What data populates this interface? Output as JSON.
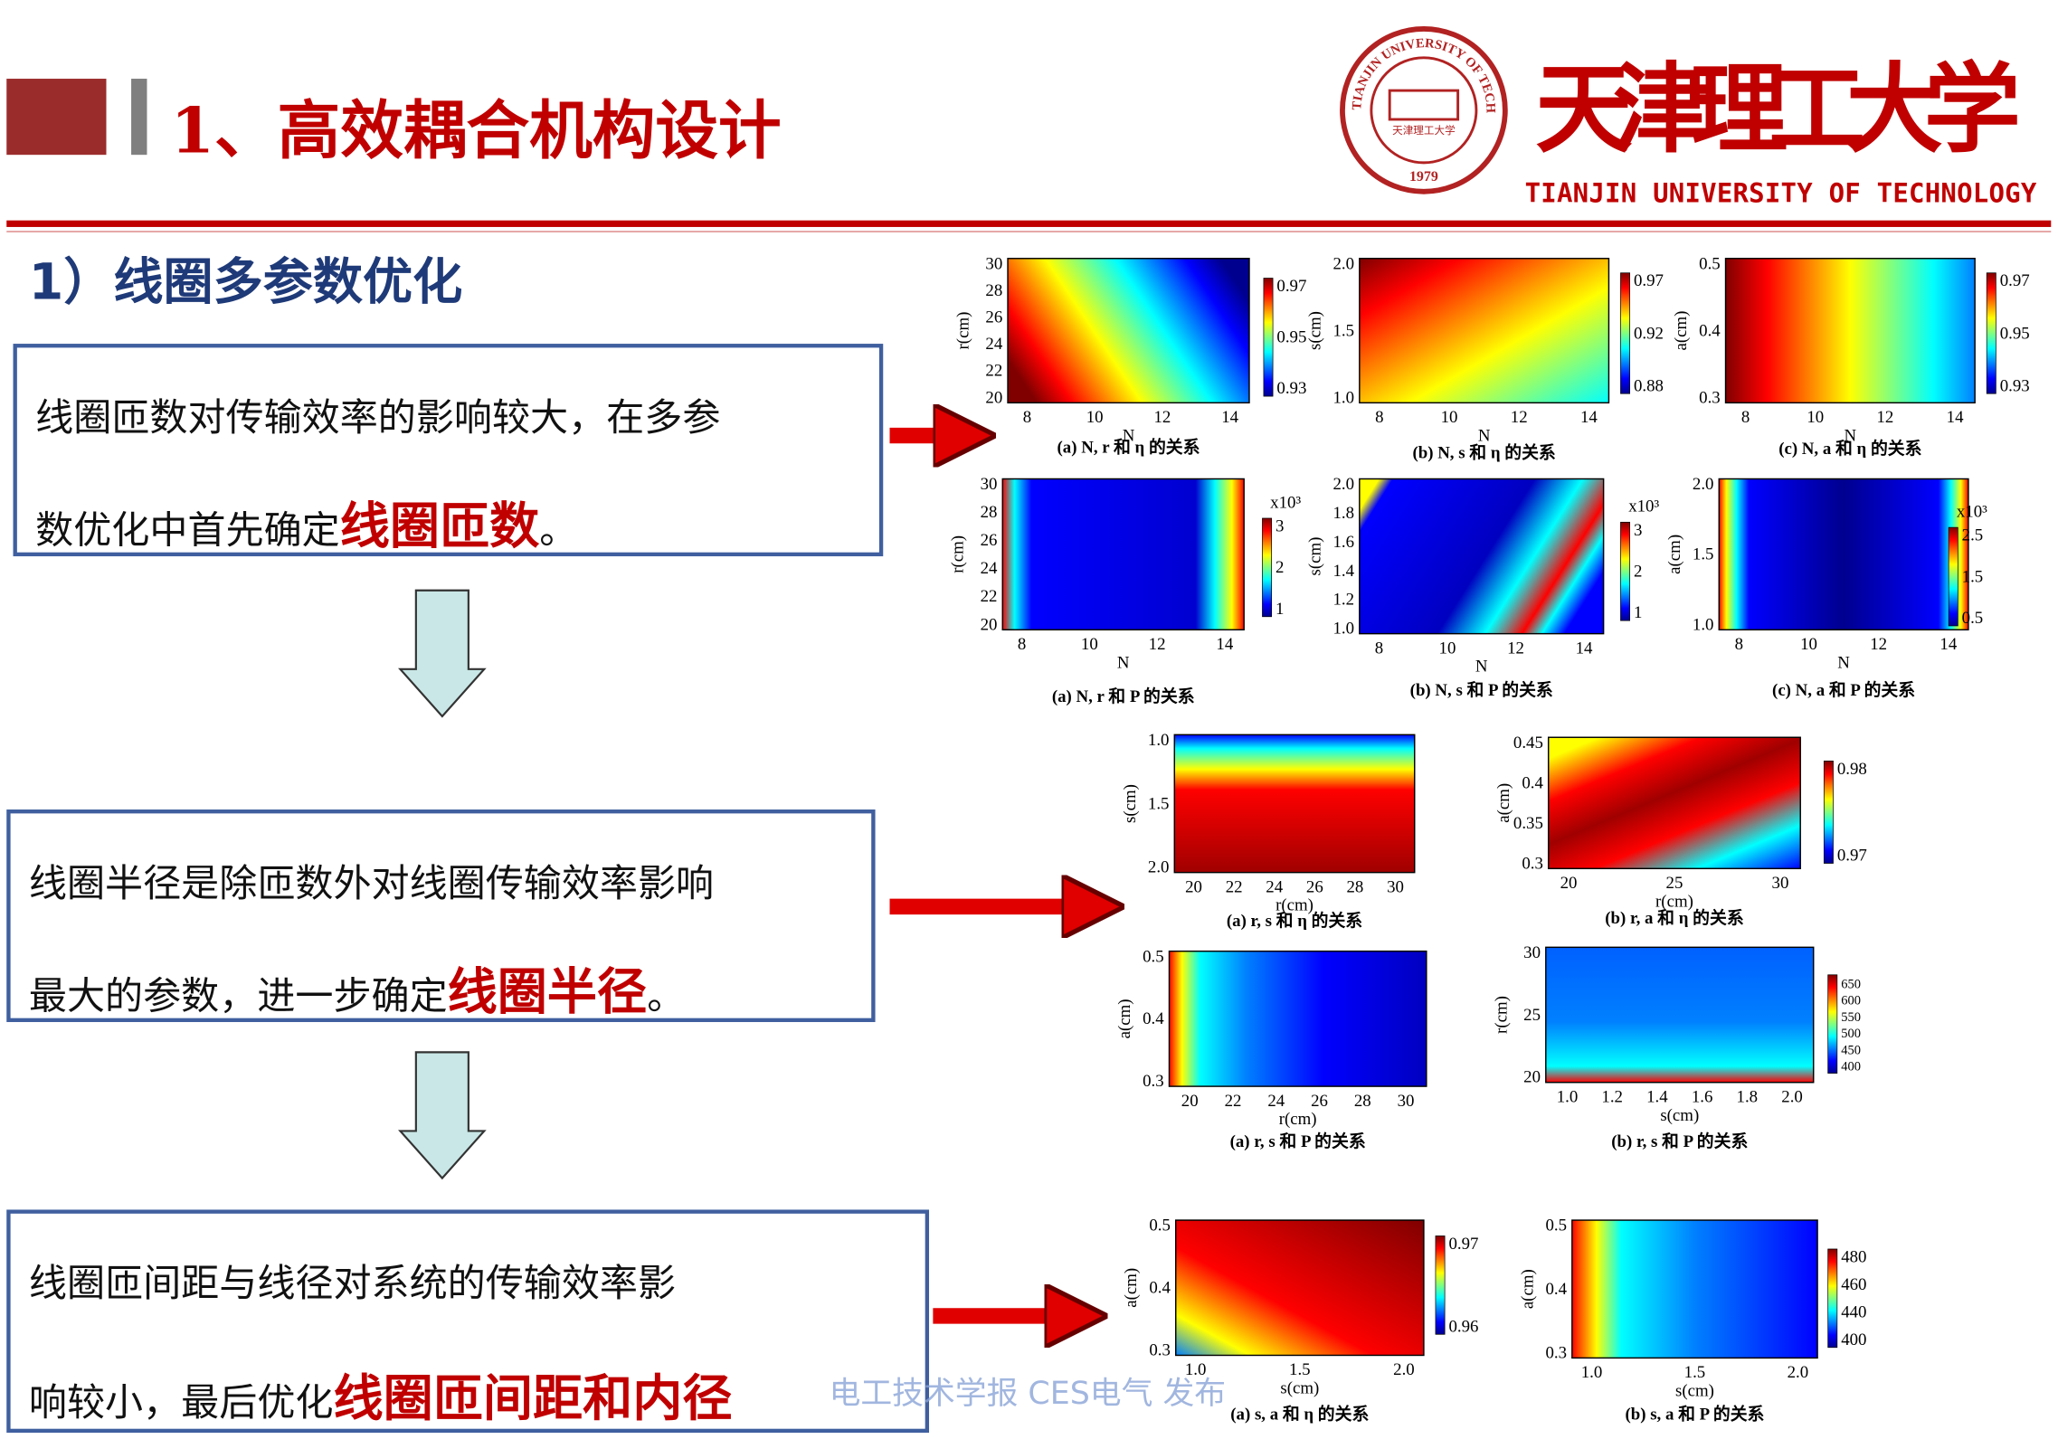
{
  "header": {
    "title": "1、高效耦合机构设计",
    "logo_cn": "天津理工大学",
    "logo_en": "TIANJIN UNIVERSITY OF TECHNOLOGY",
    "seal_text": "TIANJIN UNIVERSITY OF TECHNOLOGY",
    "seal_year": "1979",
    "seal_inner": "天津理工大学"
  },
  "section": "1）线圈多参数优化",
  "boxes": [
    {
      "lines": [
        "线圈匝数对传输效率的影响较大，在多参",
        "数优化中首先确定"
      ],
      "highlight": "线圈匝数",
      "end": "。"
    },
    {
      "lines": [
        "线圈半径是除匝数外对线圈传输效率影响",
        "最大的参数，进一步确定"
      ],
      "highlight": "线圈半径",
      "end": "。"
    },
    {
      "lines": [
        "线圈匝间距与线径对系统的传输效率影",
        "响较小，最后优化"
      ],
      "highlight": "线圈匝间距和内径"
    }
  ],
  "figures": [
    {
      "caption": "(a) N, r 和 η 的关系",
      "xlabel": "N",
      "ylabel": "r(cm)",
      "xticks": [
        "8",
        "10",
        "12",
        "14"
      ],
      "yticks": [
        "30",
        "28",
        "26",
        "24",
        "22",
        "20"
      ],
      "cbar_ticks": [
        "0.97",
        "0.95",
        "0.93"
      ]
    },
    {
      "caption": "(b) N, s 和 η 的关系",
      "xlabel": "N",
      "ylabel": "s(cm)",
      "xticks": [
        "8",
        "10",
        "12",
        "14"
      ],
      "yticks": [
        "2.0",
        "1.5",
        "1.0"
      ],
      "cbar_ticks": [
        "0.97",
        "0.92",
        "0.88"
      ]
    },
    {
      "caption": "(c) N, a 和 η 的关系",
      "xlabel": "N",
      "ylabel": "a(cm)",
      "xticks": [
        "8",
        "10",
        "12",
        "14"
      ],
      "yticks": [
        "0.5",
        "0.4",
        "0.3"
      ],
      "cbar_ticks": [
        "0.97",
        "0.95",
        "0.93"
      ]
    },
    {
      "caption": "(a) N, r 和 P 的关系",
      "xlabel": "N",
      "ylabel": "r(cm)",
      "xticks": [
        "8",
        "10",
        "12",
        "14"
      ],
      "yticks": [
        "30",
        "28",
        "26",
        "24",
        "22",
        "20"
      ],
      "cbar_ticks": [
        "3",
        "2",
        "1"
      ],
      "cbar_exp": "x10³"
    },
    {
      "caption": "(b) N, s 和 P 的关系",
      "xlabel": "N",
      "ylabel": "s(cm)",
      "xticks": [
        "8",
        "10",
        "12",
        "14"
      ],
      "yticks": [
        "2.0",
        "1.8",
        "1.6",
        "1.4",
        "1.2",
        "1.0"
      ],
      "cbar_ticks": [
        "3",
        "2",
        "1"
      ],
      "cbar_exp": "x10³"
    },
    {
      "caption": "(c) N, a 和 P 的关系",
      "xlabel": "N",
      "ylabel": "a(cm)",
      "xticks": [
        "8",
        "10",
        "12",
        "14"
      ],
      "yticks": [
        "2.0",
        "1.5",
        "1.0"
      ],
      "cbar_ticks": [
        "2.5",
        "1.5",
        "0.5"
      ],
      "cbar_exp": "x10³"
    },
    {
      "caption": "(a) r, s 和 η 的关系",
      "xlabel": "r(cm)",
      "ylabel": "s(cm)",
      "xticks": [
        "20",
        "22",
        "24",
        "26",
        "28",
        "30"
      ],
      "yticks": [
        "1.0",
        "1.5",
        "2.0"
      ]
    },
    {
      "caption": "(b) r, a 和 η 的关系",
      "xlabel": "r(cm)",
      "ylabel": "a(cm)",
      "xticks": [
        "20",
        "25",
        "30"
      ],
      "yticks": [
        "0.45",
        "0.4",
        "0.35",
        "0.3"
      ],
      "cbar_ticks": [
        "0.98",
        "0.97"
      ]
    },
    {
      "caption": "(a) r, s 和 P 的关系",
      "xlabel": "r(cm)",
      "ylabel": "a(cm)",
      "xticks": [
        "20",
        "22",
        "24",
        "26",
        "28",
        "30"
      ],
      "yticks": [
        "0.5",
        "0.4",
        "0.3"
      ]
    },
    {
      "caption": "(b) r, s 和 P 的关系",
      "xlabel": "s(cm)",
      "ylabel": "r(cm)",
      "xticks": [
        "1.0",
        "1.2",
        "1.4",
        "1.6",
        "1.8",
        "2.0"
      ],
      "yticks": [
        "30",
        "25",
        "20"
      ],
      "cbar_ticks": [
        "650",
        "600",
        "550",
        "500",
        "450",
        "400"
      ]
    },
    {
      "caption": "(a) s, a 和 η 的关系",
      "xlabel": "s(cm)",
      "ylabel": "a(cm)",
      "xticks": [
        "1.0",
        "1.5",
        "2.0"
      ],
      "yticks": [
        "0.5",
        "0.4",
        "0.3"
      ],
      "cbar_ticks": [
        "0.97",
        "0.96"
      ]
    },
    {
      "caption": "(b) s, a 和 P 的关系",
      "xlabel": "s(cm)",
      "ylabel": "a(cm)",
      "xticks": [
        "1.0",
        "1.5",
        "2.0"
      ],
      "yticks": [
        "0.5",
        "0.4",
        "0.3"
      ],
      "cbar_ticks": [
        "480",
        "460",
        "440",
        "400"
      ]
    }
  ],
  "watermark": "电工技术学报 CES电气 发布"
}
